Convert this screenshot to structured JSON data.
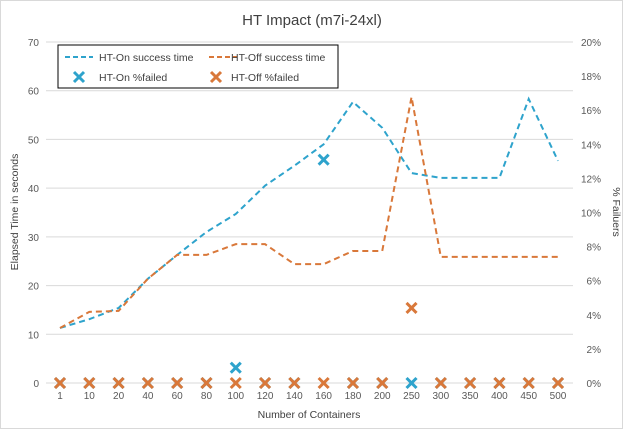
{
  "chart_data": {
    "type": "line",
    "title": "HT Impact (m7i-24xl)",
    "xlabel": "Number of Containers",
    "ylabel": "Elapsed Time in seconds",
    "y2label": "% Failuers",
    "ylim": [
      0,
      70
    ],
    "y2lim": [
      0,
      20
    ],
    "yticks": [
      "0",
      "10",
      "20",
      "30",
      "40",
      "50",
      "60",
      "70"
    ],
    "y2ticks": [
      "0%",
      "2%",
      "4%",
      "6%",
      "8%",
      "10%",
      "12%",
      "14%",
      "16%",
      "18%",
      "20%"
    ],
    "categories": [
      "1",
      "10",
      "20",
      "40",
      "60",
      "80",
      "100",
      "120",
      "140",
      "160",
      "180",
      "200",
      "250",
      "300",
      "350",
      "400",
      "450",
      "500"
    ],
    "grid": true,
    "legend_position": "top-left",
    "series": [
      {
        "name": "HT-On success time",
        "kind": "line",
        "axis": "left",
        "color": "#2ea3cc",
        "values": [
          11.3,
          13.1,
          15.4,
          21.4,
          26.3,
          31.0,
          34.7,
          40.5,
          44.6,
          49.0,
          57.7,
          52.4,
          43.1,
          42.1,
          42.1,
          42.1,
          58.3,
          45.6
        ]
      },
      {
        "name": "HT-Off success time",
        "kind": "line",
        "axis": "left",
        "color": "#d9783a",
        "values": [
          11.3,
          14.6,
          14.8,
          21.4,
          26.3,
          26.3,
          28.5,
          28.5,
          24.4,
          24.4,
          27.1,
          27.1,
          58.7,
          25.9,
          25.9,
          25.9,
          25.9,
          25.9
        ]
      },
      {
        "name": "HT-On %failed",
        "kind": "marker",
        "axis": "right",
        "color": "#2ea3cc",
        "values": [
          0,
          0,
          0,
          0,
          0,
          0,
          0.9,
          0,
          0,
          13.1,
          0,
          0,
          0,
          0,
          0,
          0,
          0,
          0
        ]
      },
      {
        "name": "HT-Off %failed",
        "kind": "marker",
        "axis": "right",
        "color": "#d9783a",
        "values": [
          0,
          0,
          0,
          0,
          0,
          0,
          0,
          0,
          0,
          0,
          0,
          0,
          4.4,
          0,
          0,
          0,
          0,
          0
        ]
      }
    ]
  }
}
